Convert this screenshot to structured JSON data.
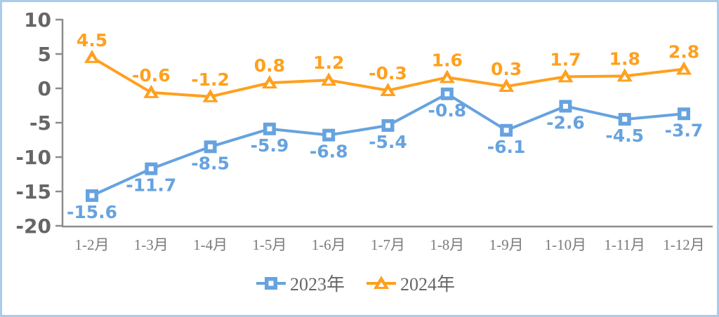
{
  "chart_data": {
    "type": "line",
    "title": "",
    "xlabel": "",
    "ylabel": "",
    "categories": [
      "1-2月",
      "1-3月",
      "1-4月",
      "1-5月",
      "1-6月",
      "1-7月",
      "1-8月",
      "1-9月",
      "1-10月",
      "1-11月",
      "1-12月"
    ],
    "series": [
      {
        "name": "2023年",
        "marker": "square",
        "color": "#66a3df",
        "label_position": "below",
        "values": [
          -15.6,
          -11.7,
          -8.5,
          -5.9,
          -6.8,
          -5.4,
          -0.8,
          -6.1,
          -2.6,
          -4.5,
          -3.7
        ]
      },
      {
        "name": "2024年",
        "marker": "triangle",
        "color": "#ffa01e",
        "label_position": "above",
        "values": [
          4.5,
          -0.6,
          -1.2,
          0.8,
          1.2,
          -0.3,
          1.6,
          0.3,
          1.7,
          1.8,
          2.8
        ]
      }
    ],
    "y_ticks": [
      10,
      5,
      0,
      -5,
      -10,
      -15,
      -20
    ],
    "ylim": [
      -20,
      10
    ],
    "grid": false,
    "legend_position": "bottom-center",
    "data_labels": true,
    "colors": {
      "axis_line": "#8c8c8c",
      "y_tick_label": "#666666",
      "x_tick_label": "#7b7b7b",
      "legend_text": "#666666",
      "marker_center": "#ffffff",
      "frame_border": "#a9cceb",
      "background": "#ffffff"
    }
  }
}
